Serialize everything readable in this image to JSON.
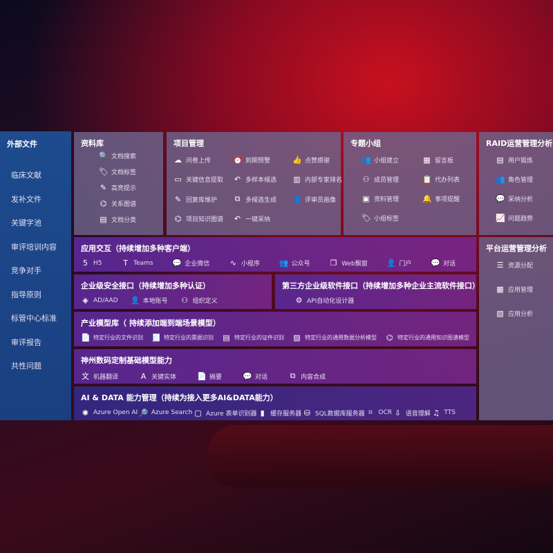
{
  "external": {
    "title": "外部文件",
    "items": [
      "临床文献",
      "发补文件",
      "关键字池",
      "审评培训内容",
      "竞争对手",
      "指导原则",
      "标管中心标准",
      "审评报告",
      "共性问题"
    ]
  },
  "library": {
    "title": "资料库",
    "items": [
      {
        "icon": "doc-search",
        "label": "文档搜索"
      },
      {
        "icon": "tag",
        "label": "文档标签"
      },
      {
        "icon": "pen",
        "label": "高亮提示"
      },
      {
        "icon": "graph",
        "label": "关系图谱"
      },
      {
        "icon": "doc-category",
        "label": "文档分类"
      }
    ]
  },
  "project": {
    "title": "项目管理",
    "items": [
      {
        "icon": "cloud-upload",
        "label": "问卷上传"
      },
      {
        "icon": "alarm",
        "label": "到期预警"
      },
      {
        "icon": "thumbs-up",
        "label": "点赞感谢"
      },
      {
        "icon": "card",
        "label": "关键信息提取"
      },
      {
        "icon": "reply",
        "label": "多样本候选"
      },
      {
        "icon": "ranking",
        "label": "内部专家排名"
      },
      {
        "icon": "edit",
        "label": "回复库维护"
      },
      {
        "icon": "puzzle",
        "label": "多候选生成"
      },
      {
        "icon": "user",
        "label": "评审员画像"
      },
      {
        "icon": "graph",
        "label": "项目知识图谱"
      },
      {
        "icon": "reply",
        "label": "一键采纳"
      }
    ]
  },
  "group": {
    "title": "专题小组",
    "items": [
      {
        "icon": "users",
        "label": "小组建立"
      },
      {
        "icon": "bbs",
        "label": "留言板"
      },
      {
        "icon": "user-add",
        "label": "成员管理"
      },
      {
        "icon": "clipboard",
        "label": "代办列表"
      },
      {
        "icon": "folder",
        "label": "资料管理"
      },
      {
        "icon": "bell",
        "label": "事项提醒"
      },
      {
        "icon": "tag",
        "label": "小组标签"
      }
    ]
  },
  "raid": {
    "title": "RAID运营管理分析",
    "items": [
      {
        "icon": "id-card",
        "label": "用户锻炼"
      },
      {
        "icon": "users",
        "label": "角色管理"
      },
      {
        "icon": "qa",
        "label": "采纳分析"
      },
      {
        "icon": "trend",
        "label": "问题趋势"
      }
    ]
  },
  "platform": {
    "title": "平台运营管理分析",
    "items": [
      {
        "icon": "checklist",
        "label": "资源分配"
      },
      {
        "icon": "apps",
        "label": "应用管理"
      },
      {
        "icon": "chart",
        "label": "应用分析"
      }
    ]
  },
  "interaction": {
    "title": "应用交互（持续增加多种客户端）",
    "items": [
      {
        "icon": "html5",
        "label": "H5"
      },
      {
        "icon": "teams",
        "label": "Teams"
      },
      {
        "icon": "wechat",
        "label": "企业微信"
      },
      {
        "icon": "mini-program",
        "label": "小程序"
      },
      {
        "icon": "users",
        "label": "公众号"
      },
      {
        "icon": "window",
        "label": "Web飘窗"
      },
      {
        "icon": "portal",
        "label": "门户"
      },
      {
        "icon": "chat",
        "label": "对话"
      }
    ]
  },
  "security": {
    "title": "企业级安全接口（持续增加多种认证）",
    "items": [
      {
        "icon": "diamond",
        "label": "AD/AAD"
      },
      {
        "icon": "user",
        "label": "本地账号"
      },
      {
        "icon": "org",
        "label": "组织定义"
      }
    ]
  },
  "thirdparty": {
    "title": "第三方企业级软件接口（持续增加多种企业主流软件接口）",
    "items": [
      {
        "icon": "gear",
        "label": "API自动化设计器"
      }
    ]
  },
  "industry": {
    "title": "产业模型库（ 持续添加端到端场景模型）",
    "items": [
      {
        "icon": "doc",
        "label": "特定行业的文件识别"
      },
      {
        "icon": "receipt",
        "label": "特定行业的票据识别"
      },
      {
        "icon": "id-card",
        "label": "特定行业的证件识别"
      },
      {
        "icon": "image",
        "label": "特定行业的通用数据分析模型"
      },
      {
        "icon": "graph",
        "label": "特定行业的通用知识图谱模型"
      }
    ]
  },
  "base": {
    "title": "神州数码定制基础模型能力",
    "items": [
      {
        "icon": "translate",
        "label": "机器翻译"
      },
      {
        "icon": "entity",
        "label": "关键实体"
      },
      {
        "icon": "doc",
        "label": "摘要"
      },
      {
        "icon": "chat",
        "label": "对话"
      },
      {
        "icon": "puzzle",
        "label": "内容合成"
      }
    ]
  },
  "aidata": {
    "title": "AI & DATA 能力管理（持续为接入更多AI&DATA能力）",
    "items": [
      {
        "icon": "openai",
        "label": "Azure Open AI"
      },
      {
        "icon": "search",
        "label": "Azure Search"
      },
      {
        "icon": "form",
        "label": "Azure 表单识别器"
      },
      {
        "icon": "cache",
        "label": "缓存服务器"
      },
      {
        "icon": "database",
        "label": "SQL数据库服务器"
      },
      {
        "icon": "ocr",
        "label": "OCR"
      },
      {
        "icon": "speech",
        "label": "语音理解"
      },
      {
        "icon": "tts",
        "label": "TTS"
      }
    ]
  }
}
